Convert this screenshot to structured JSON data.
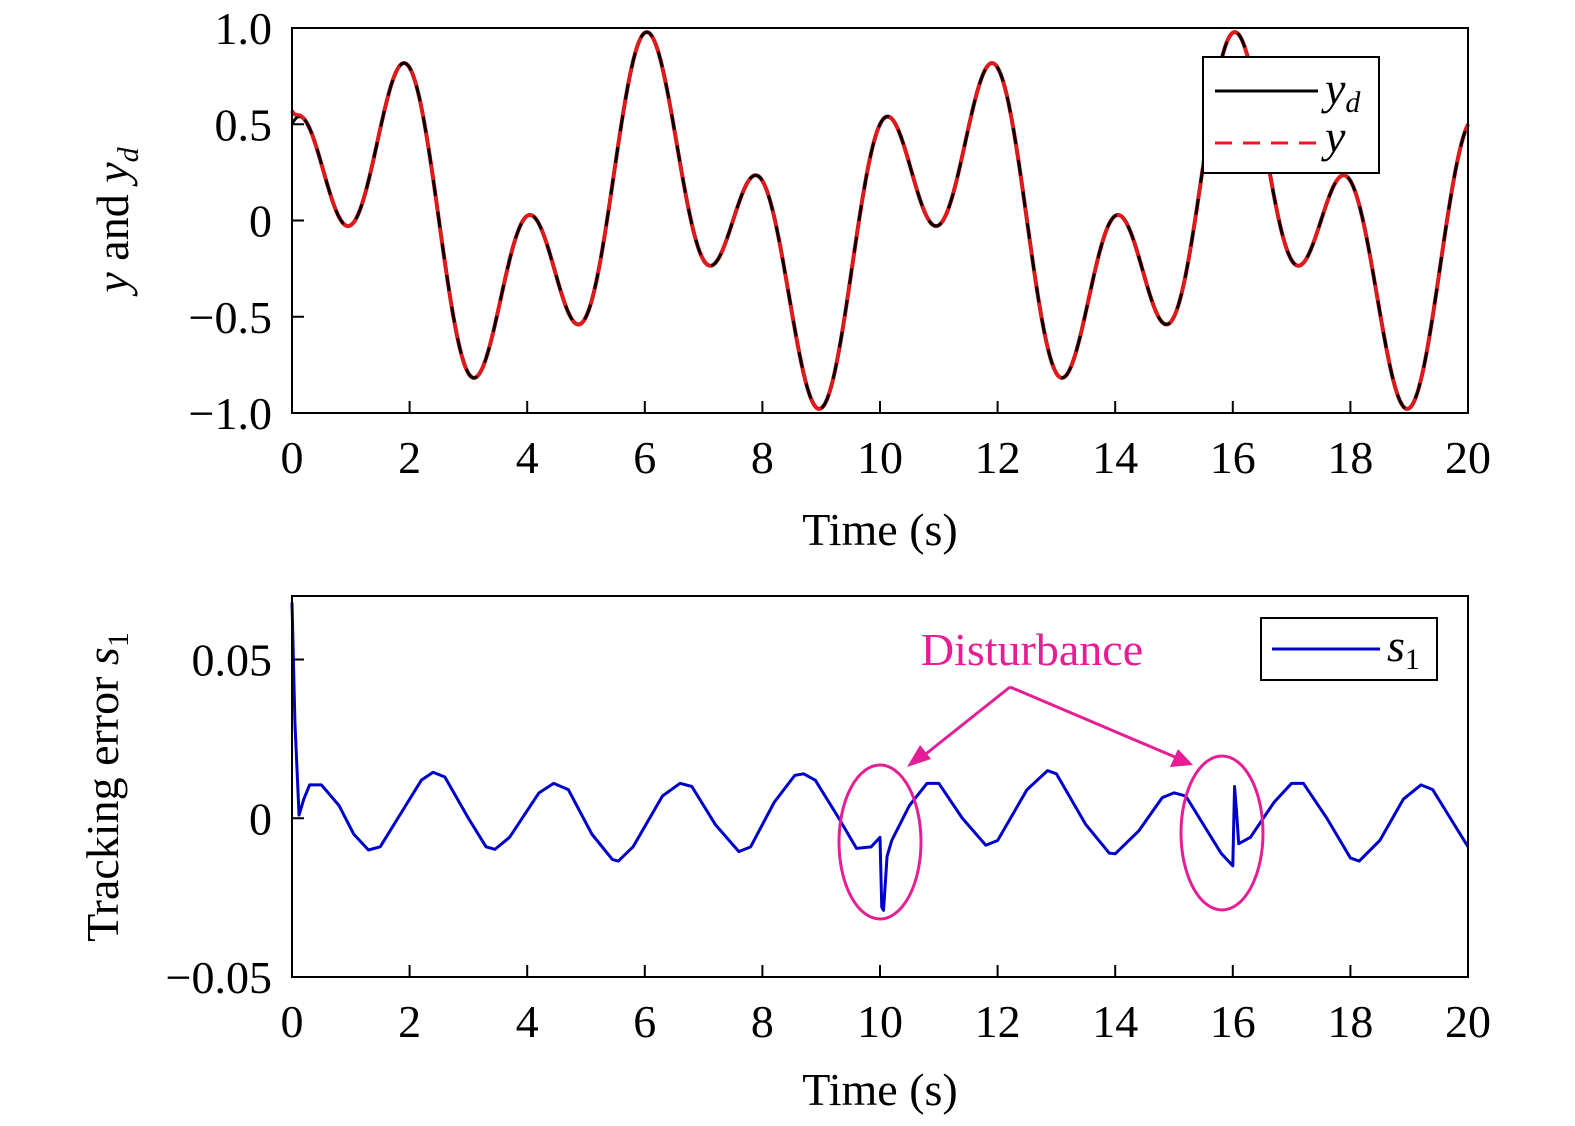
{
  "chart_data": [
    {
      "type": "line",
      "xlabel": "Time (s)",
      "ylabel": "y and y_d",
      "ylabel_parts": {
        "a": "y",
        "and": " and ",
        "b": "y",
        "b_sub": "d"
      },
      "xlim": [
        0,
        20
      ],
      "ylim": [
        -1.0,
        1.0
      ],
      "x_ticks": [
        0,
        2,
        4,
        6,
        8,
        10,
        12,
        14,
        16,
        18,
        20
      ],
      "x_tick_labels": [
        "0",
        "2",
        "4",
        "6",
        "8",
        "10",
        "12",
        "14",
        "16",
        "18",
        "20"
      ],
      "y_ticks": [
        -1.0,
        -0.5,
        0,
        0.5,
        1.0
      ],
      "y_tick_labels": [
        "−1.0",
        "−0.5",
        "0",
        "0.5",
        "1.0"
      ],
      "legend_position": "top-right",
      "signal_model": "0.5*cos(pi*t) + 0.5*sin(2*pi*t/5)",
      "series": [
        {
          "name": "y_d",
          "label_main": "y",
          "label_sub": "d",
          "color": "#000000",
          "style": "solid"
        },
        {
          "name": "y",
          "label_main": "y",
          "label_sub": "",
          "color": "#e41a1c",
          "style": "dashed",
          "initial_value": 0.57
        }
      ]
    },
    {
      "type": "line",
      "xlabel": "Time (s)",
      "ylabel": "Tracking error s_1",
      "ylabel_parts": {
        "text": "Tracking error ",
        "var": "s",
        "sub": "1"
      },
      "xlim": [
        0,
        20
      ],
      "ylim": [
        -0.05,
        0.07
      ],
      "x_ticks": [
        0,
        2,
        4,
        6,
        8,
        10,
        12,
        14,
        16,
        18,
        20
      ],
      "x_tick_labels": [
        "0",
        "2",
        "4",
        "6",
        "8",
        "10",
        "12",
        "14",
        "16",
        "18",
        "20"
      ],
      "y_ticks": [
        -0.05,
        0,
        0.05
      ],
      "y_tick_labels": [
        "−0.05",
        "0",
        "0.05"
      ],
      "legend_position": "top-right",
      "series": [
        {
          "name": "s_1",
          "label_main": "s",
          "label_sub": "1",
          "color": "#0000cc",
          "style": "solid",
          "points": [
            [
              0,
              0.068
            ],
            [
              0.05,
              0.03
            ],
            [
              0.12,
              0.001
            ],
            [
              0.2,
              0.006
            ],
            [
              0.3,
              0.0105
            ],
            [
              0.5,
              0.0105
            ],
            [
              0.8,
              0.004
            ],
            [
              1.05,
              -0.005
            ],
            [
              1.3,
              -0.01
            ],
            [
              1.5,
              -0.009
            ],
            [
              1.9,
              0.003
            ],
            [
              2.2,
              0.012
            ],
            [
              2.4,
              0.0145
            ],
            [
              2.6,
              0.013
            ],
            [
              3.0,
              0.0
            ],
            [
              3.3,
              -0.009
            ],
            [
              3.45,
              -0.0098
            ],
            [
              3.7,
              -0.006
            ],
            [
              4.2,
              0.008
            ],
            [
              4.45,
              0.011
            ],
            [
              4.7,
              0.009
            ],
            [
              5.1,
              -0.005
            ],
            [
              5.45,
              -0.013
            ],
            [
              5.55,
              -0.0135
            ],
            [
              5.8,
              -0.009
            ],
            [
              6.3,
              0.007
            ],
            [
              6.6,
              0.011
            ],
            [
              6.8,
              0.01
            ],
            [
              7.2,
              -0.002
            ],
            [
              7.6,
              -0.0105
            ],
            [
              7.8,
              -0.009
            ],
            [
              8.2,
              0.005
            ],
            [
              8.55,
              0.0135
            ],
            [
              8.7,
              0.014
            ],
            [
              8.9,
              0.012
            ],
            [
              9.3,
              0.0
            ],
            [
              9.6,
              -0.0095
            ],
            [
              9.85,
              -0.009
            ],
            [
              9.95,
              -0.007
            ],
            [
              10.0,
              -0.006
            ],
            [
              10.03,
              -0.028
            ],
            [
              10.06,
              -0.029
            ],
            [
              10.12,
              -0.012
            ],
            [
              10.2,
              -0.007
            ],
            [
              10.5,
              0.004
            ],
            [
              10.8,
              0.011
            ],
            [
              11.0,
              0.011
            ],
            [
              11.4,
              0.0
            ],
            [
              11.8,
              -0.0085
            ],
            [
              12.0,
              -0.007
            ],
            [
              12.5,
              0.009
            ],
            [
              12.85,
              0.015
            ],
            [
              13.0,
              0.014
            ],
            [
              13.5,
              -0.002
            ],
            [
              13.9,
              -0.011
            ],
            [
              14.0,
              -0.0112
            ],
            [
              14.4,
              -0.004
            ],
            [
              14.8,
              0.0065
            ],
            [
              15.0,
              0.008
            ],
            [
              15.2,
              0.007
            ],
            [
              15.5,
              -0.002
            ],
            [
              15.8,
              -0.011
            ],
            [
              16.0,
              -0.015
            ],
            [
              16.03,
              0.01
            ],
            [
              16.06,
              0.003
            ],
            [
              16.1,
              -0.008
            ],
            [
              16.3,
              -0.006
            ],
            [
              16.7,
              0.005
            ],
            [
              17.0,
              0.011
            ],
            [
              17.2,
              0.011
            ],
            [
              17.6,
              0.0
            ],
            [
              18.0,
              -0.0125
            ],
            [
              18.15,
              -0.0135
            ],
            [
              18.5,
              -0.007
            ],
            [
              18.9,
              0.006
            ],
            [
              19.2,
              0.0105
            ],
            [
              19.4,
              0.009
            ],
            [
              19.8,
              -0.003
            ],
            [
              20.0,
              -0.009
            ]
          ]
        }
      ],
      "annotation": {
        "text": "Disturbance",
        "color": "#e61e96",
        "targets": [
          10,
          16
        ]
      }
    }
  ]
}
